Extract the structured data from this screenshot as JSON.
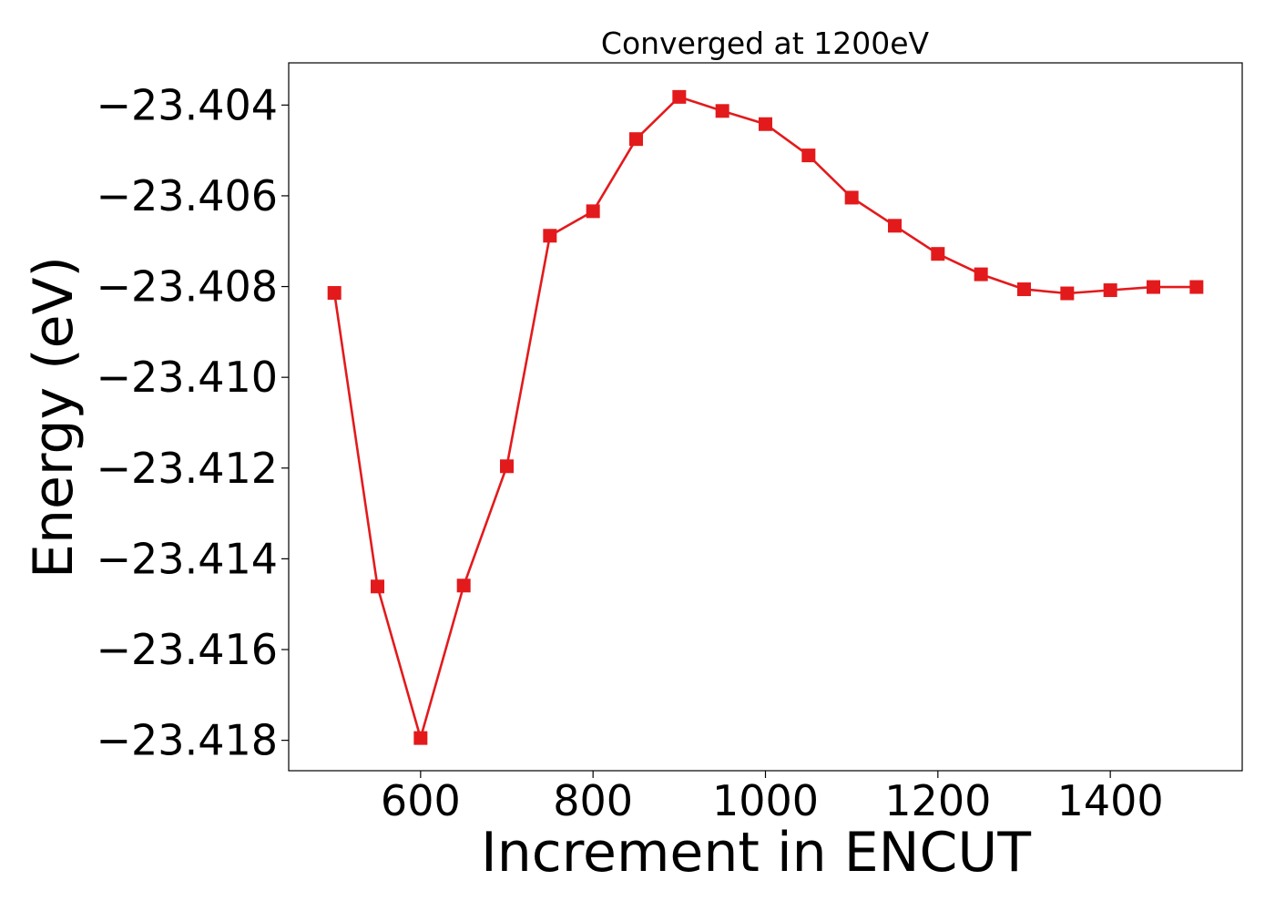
{
  "chart_data": {
    "type": "line",
    "title": "Converged at 1200eV",
    "xlabel": "Increment in ENCUT",
    "ylabel": "Energy (eV)",
    "xlim": [
      447,
      1553
    ],
    "ylim": [
      -23.41867,
      -23.40307
    ],
    "x_ticks": [
      600,
      800,
      1000,
      1200,
      1400
    ],
    "x_tick_labels": [
      "600",
      "800",
      "1000",
      "1200",
      "1400"
    ],
    "y_ticks": [
      -23.404,
      -23.406,
      -23.408,
      -23.41,
      -23.412,
      -23.414,
      -23.416,
      -23.418
    ],
    "y_tick_labels": [
      "−23.404",
      "−23.406",
      "−23.408",
      "−23.410",
      "−23.412",
      "−23.414",
      "−23.416",
      "−23.418"
    ],
    "grid": false,
    "series": [
      {
        "color": "#e31a1c",
        "marker": "square",
        "x": [
          500,
          550,
          600,
          650,
          700,
          750,
          800,
          850,
          900,
          950,
          1000,
          1050,
          1100,
          1150,
          1200,
          1250,
          1300,
          1350,
          1400,
          1450,
          1500
        ],
        "y": [
          -23.40814,
          -23.41461,
          -23.41795,
          -23.41459,
          -23.41196,
          -23.40688,
          -23.40634,
          -23.40475,
          -23.40382,
          -23.40413,
          -23.40442,
          -23.40511,
          -23.40604,
          -23.40666,
          -23.40728,
          -23.40773,
          -23.40806,
          -23.40815,
          -23.40808,
          -23.40801,
          -23.40801
        ]
      }
    ]
  }
}
